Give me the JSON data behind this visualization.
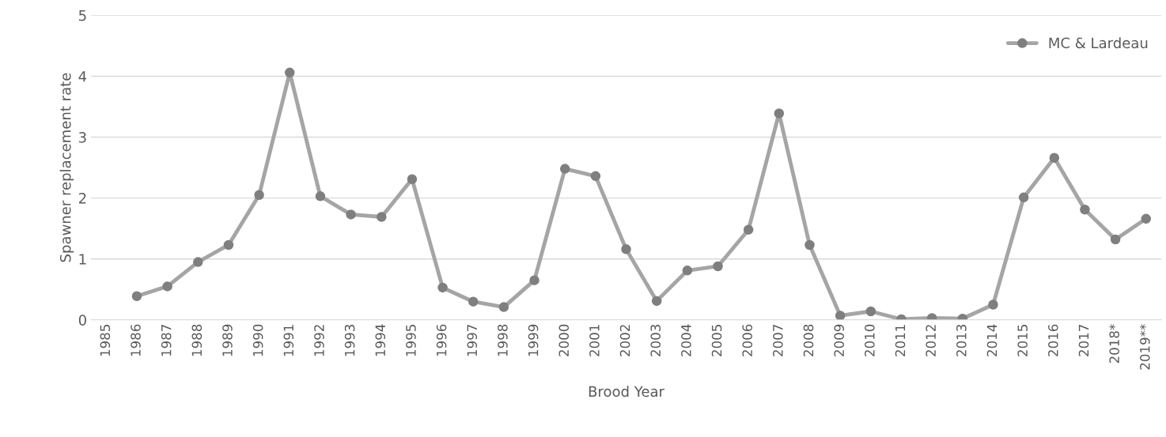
{
  "chart_data": {
    "type": "line",
    "xlabel": "Brood Year",
    "ylabel": "Spawner replacement rate",
    "categories": [
      "1985",
      "1986",
      "1987",
      "1988",
      "1989",
      "1990",
      "1991",
      "1992",
      "1993",
      "1994",
      "1995",
      "1996",
      "1997",
      "1998",
      "1999",
      "2000",
      "2001",
      "2002",
      "2003",
      "2004",
      "2005",
      "2006",
      "2007",
      "2008",
      "2009",
      "2010",
      "2011",
      "2012",
      "2013",
      "2014",
      "2015",
      "2016",
      "2017",
      "2018*",
      "2019**"
    ],
    "series": [
      {
        "name": "MC & Lardeau",
        "color": "#a5a5a5",
        "values": [
          null,
          0.39,
          0.55,
          0.95,
          1.23,
          2.05,
          4.06,
          2.03,
          1.73,
          1.69,
          2.31,
          0.53,
          0.3,
          0.21,
          0.65,
          2.48,
          2.36,
          1.16,
          0.31,
          0.81,
          0.88,
          1.48,
          3.39,
          1.23,
          0.07,
          0.14,
          0.01,
          0.03,
          0.02,
          0.25,
          2.01,
          2.66,
          1.81,
          1.32,
          1.66
        ]
      }
    ],
    "ylim": [
      0,
      5
    ],
    "yticks": [
      0,
      1,
      2,
      3,
      4,
      5
    ],
    "grid": "y",
    "legend": "top right",
    "marker": "circle",
    "line_style": "solid"
  }
}
